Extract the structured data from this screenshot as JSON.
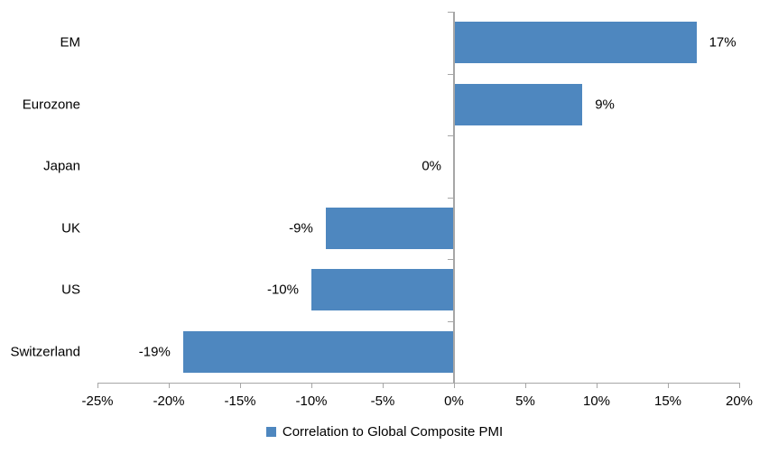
{
  "chart_data": {
    "type": "bar",
    "orientation": "horizontal",
    "title": "",
    "categories": [
      "EM",
      "Eurozone",
      "Japan",
      "UK",
      "US",
      "Switzerland"
    ],
    "values": [
      17,
      9,
      0,
      -9,
      -10,
      -19
    ],
    "value_labels": [
      "17%",
      "9%",
      "0%",
      "-9%",
      "-10%",
      "-19%"
    ],
    "series": [
      {
        "name": "Correlation to Global Composite PMI",
        "values": [
          17,
          9,
          0,
          -9,
          -10,
          -19
        ]
      }
    ],
    "xlabel": "",
    "ylabel": "",
    "xlim": [
      -25,
      20
    ],
    "x_tick_values": [
      -25,
      -20,
      -15,
      -10,
      -5,
      0,
      5,
      10,
      15,
      20
    ],
    "x_tick_labels": [
      "-25%",
      "-20%",
      "-15%",
      "-10%",
      "-5%",
      "0%",
      "5%",
      "10%",
      "15%",
      "20%"
    ],
    "grid": false,
    "legend_position": "bottom-center"
  },
  "legend": {
    "label": "Correlation to Global Composite PMI"
  },
  "colors": {
    "bar": "#4E87BF",
    "axis": "#A6A6A6",
    "text": "#000000",
    "background": "#FFFFFF"
  }
}
